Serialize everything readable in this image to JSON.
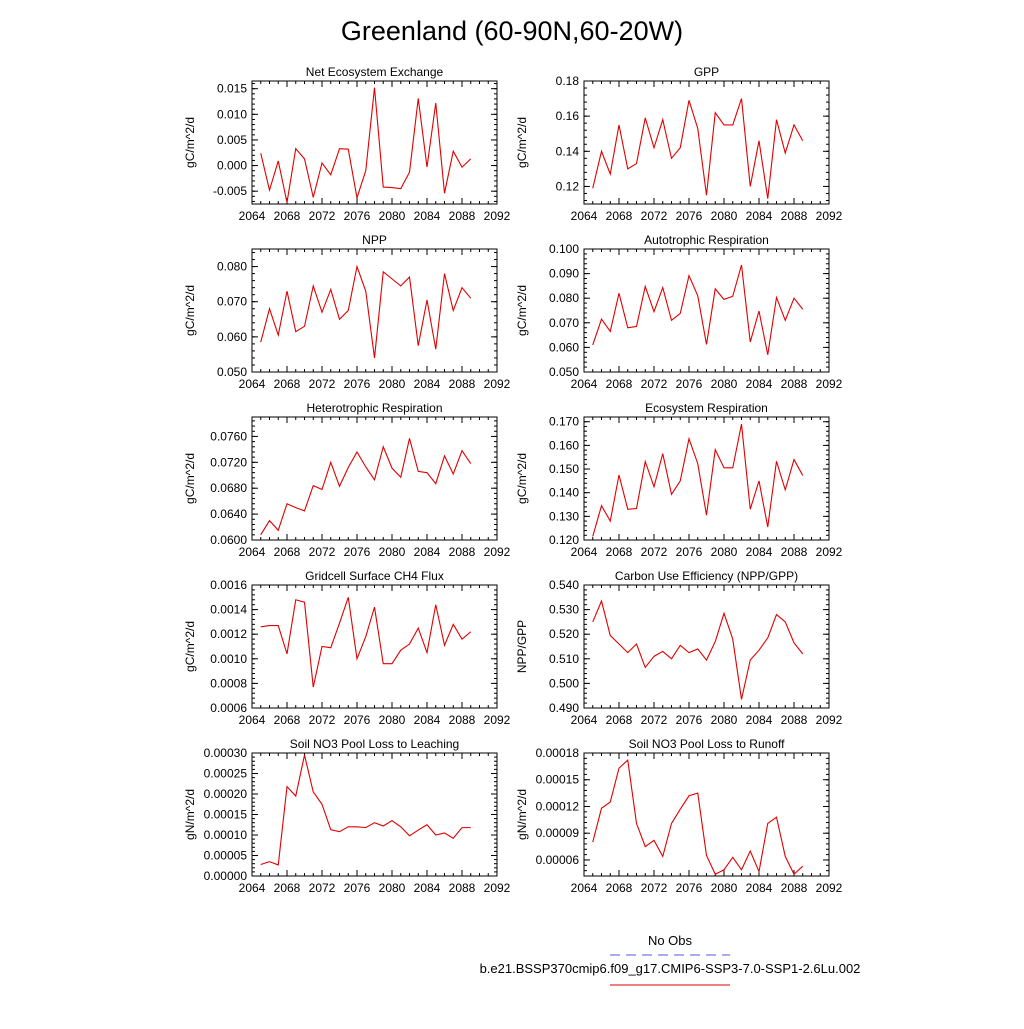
{
  "page": {
    "title": "Greenland (60-90N,60-20W)"
  },
  "legend": {
    "obs_label": "No Obs",
    "obs_color": "#5555dd",
    "case_label": "b.e21.BSSP370cmip6.f09_g17.CMIP6-SSP3-7.0-SSP1-2.6Lu.002",
    "case_color": "#e00000"
  },
  "chart_data": [
    {
      "type": "line",
      "title": "Net Ecosystem Exchange",
      "ylabel": "gC/m^2/d",
      "xlim": [
        2064,
        2092
      ],
      "ylim": [
        -0.0075,
        0.0165
      ],
      "yticks": [
        -0.005,
        0.0,
        0.005,
        0.01,
        0.015
      ],
      "ytick_labels": [
        "-0.005",
        "0.000",
        "0.005",
        "0.010",
        "0.015"
      ],
      "series": [
        {
          "x_start": 2065,
          "values": [
            0.0024,
            -0.0048,
            0.0009,
            -0.0072,
            0.0033,
            0.0013,
            -0.0062,
            0.0005,
            -0.0018,
            0.0033,
            0.0032,
            -0.0063,
            -0.001,
            0.0152,
            -0.0042,
            -0.0043,
            -0.0045,
            -0.0013,
            0.0131,
            -0.0003,
            0.0122,
            -0.0054,
            0.0028,
            -0.0003,
            0.0013
          ]
        }
      ]
    },
    {
      "type": "line",
      "title": "GPP",
      "ylabel": "gC/m^2/d",
      "xlim": [
        2064,
        2092
      ],
      "ylim": [
        0.11,
        0.18
      ],
      "yticks": [
        0.12,
        0.14,
        0.16,
        0.18
      ],
      "ytick_labels": [
        "0.12",
        "0.14",
        "0.16",
        "0.18"
      ],
      "series": [
        {
          "x_start": 2065,
          "values": [
            0.119,
            0.14,
            0.127,
            0.155,
            0.13,
            0.133,
            0.159,
            0.142,
            0.158,
            0.136,
            0.142,
            0.169,
            0.153,
            0.115,
            0.162,
            0.155,
            0.155,
            0.17,
            0.12,
            0.146,
            0.113,
            0.158,
            0.139,
            0.155,
            0.146
          ]
        }
      ]
    },
    {
      "type": "line",
      "title": "NPP",
      "ylabel": "gC/m^2/d",
      "xlim": [
        2064,
        2092
      ],
      "ylim": [
        0.05,
        0.085
      ],
      "yticks": [
        0.05,
        0.06,
        0.07,
        0.08
      ],
      "ytick_labels": [
        "0.050",
        "0.060",
        "0.070",
        "0.080"
      ],
      "series": [
        {
          "x_start": 2065,
          "values": [
            0.0585,
            0.068,
            0.0605,
            0.073,
            0.0615,
            0.063,
            0.0745,
            0.067,
            0.0735,
            0.065,
            0.0675,
            0.08,
            0.073,
            0.054,
            0.0785,
            0.0765,
            0.0745,
            0.077,
            0.0575,
            0.0705,
            0.0565,
            0.078,
            0.0675,
            0.074,
            0.071
          ]
        }
      ]
    },
    {
      "type": "line",
      "title": "Autotrophic Respiration",
      "ylabel": "gC/m^2/d",
      "xlim": [
        2064,
        2092
      ],
      "ylim": [
        0.05,
        0.1
      ],
      "yticks": [
        0.05,
        0.06,
        0.07,
        0.08,
        0.09,
        0.1
      ],
      "ytick_labels": [
        "0.050",
        "0.060",
        "0.070",
        "0.080",
        "0.090",
        "0.100"
      ],
      "series": [
        {
          "x_start": 2065,
          "values": [
            0.061,
            0.0715,
            0.0665,
            0.082,
            0.068,
            0.0685,
            0.0848,
            0.0745,
            0.0843,
            0.071,
            0.0738,
            0.0892,
            0.081,
            0.0612,
            0.0838,
            0.0795,
            0.0808,
            0.0935,
            0.0622,
            0.0748,
            0.057,
            0.0803,
            0.071,
            0.08,
            0.0755
          ]
        }
      ]
    },
    {
      "type": "line",
      "title": "Heterotrophic Respiration",
      "ylabel": "gC/m^2/d",
      "xlim": [
        2064,
        2092
      ],
      "ylim": [
        0.06,
        0.079
      ],
      "yticks": [
        0.06,
        0.064,
        0.068,
        0.072,
        0.076
      ],
      "ytick_labels": [
        "0.0600",
        "0.0640",
        "0.0680",
        "0.0720",
        "0.0760"
      ],
      "series": [
        {
          "x_start": 2065,
          "values": [
            0.0608,
            0.063,
            0.0615,
            0.0656,
            0.065,
            0.0645,
            0.0684,
            0.0678,
            0.072,
            0.0683,
            0.0712,
            0.0736,
            0.0713,
            0.0693,
            0.0744,
            0.0711,
            0.0697,
            0.0757,
            0.0706,
            0.0704,
            0.0687,
            0.073,
            0.0702,
            0.0738,
            0.0718
          ]
        }
      ]
    },
    {
      "type": "line",
      "title": "Ecosystem Respiration",
      "ylabel": "gC/m^2/d",
      "xlim": [
        2064,
        2092
      ],
      "ylim": [
        0.12,
        0.172
      ],
      "yticks": [
        0.12,
        0.13,
        0.14,
        0.15,
        0.16,
        0.17
      ],
      "ytick_labels": [
        "0.120",
        "0.130",
        "0.140",
        "0.150",
        "0.160",
        "0.170"
      ],
      "series": [
        {
          "x_start": 2065,
          "values": [
            0.1215,
            0.1345,
            0.128,
            0.1475,
            0.133,
            0.1333,
            0.1532,
            0.1425,
            0.1565,
            0.1393,
            0.145,
            0.1628,
            0.1523,
            0.1305,
            0.1582,
            0.1505,
            0.1505,
            0.169,
            0.133,
            0.145,
            0.1255,
            0.1533,
            0.1412,
            0.154,
            0.1473
          ]
        }
      ]
    },
    {
      "type": "line",
      "title": "Gridcell Surface CH4 Flux",
      "ylabel": "gC/m^2/d",
      "xlim": [
        2064,
        2092
      ],
      "ylim": [
        0.0006,
        0.0016
      ],
      "yticks": [
        0.0006,
        0.0008,
        0.001,
        0.0012,
        0.0014,
        0.0016
      ],
      "ytick_labels": [
        "0.0006",
        "0.0008",
        "0.0010",
        "0.0012",
        "0.0014",
        "0.0016"
      ],
      "series": [
        {
          "x_start": 2065,
          "values": [
            0.00126,
            0.00127,
            0.00127,
            0.00104,
            0.00148,
            0.00146,
            0.00077,
            0.0011,
            0.00109,
            0.00129,
            0.0015,
            0.001,
            0.00118,
            0.00142,
            0.00096,
            0.00096,
            0.00107,
            0.00112,
            0.00125,
            0.00105,
            0.00144,
            0.00111,
            0.00128,
            0.00116,
            0.00122
          ]
        }
      ]
    },
    {
      "type": "line",
      "title": "Carbon Use Efficiency (NPP/GPP)",
      "ylabel": "NPP/GPP",
      "xlim": [
        2064,
        2092
      ],
      "ylim": [
        0.49,
        0.54
      ],
      "yticks": [
        0.49,
        0.5,
        0.51,
        0.52,
        0.53,
        0.54
      ],
      "ytick_labels": [
        "0.490",
        "0.500",
        "0.510",
        "0.520",
        "0.530",
        "0.540"
      ],
      "series": [
        {
          "x_start": 2065,
          "values": [
            0.525,
            0.5335,
            0.5195,
            0.516,
            0.5125,
            0.516,
            0.5065,
            0.511,
            0.513,
            0.51,
            0.5155,
            0.5125,
            0.514,
            0.5095,
            0.517,
            0.5285,
            0.518,
            0.4935,
            0.5095,
            0.5135,
            0.5185,
            0.528,
            0.525,
            0.5165,
            0.512
          ]
        }
      ]
    },
    {
      "type": "line",
      "title": "Soil NO3 Pool Loss to Leaching",
      "ylabel": "gN/m^2/d",
      "xlim": [
        2064,
        2092
      ],
      "ylim": [
        0.0,
        0.0003
      ],
      "yticks": [
        0.0,
        5e-05,
        0.0001,
        0.00015,
        0.0002,
        0.00025,
        0.0003
      ],
      "ytick_labels": [
        "0.00000",
        "0.00005",
        "0.00010",
        "0.00015",
        "0.00020",
        "0.00025",
        "0.00030"
      ],
      "series": [
        {
          "x_start": 2065,
          "values": [
            2.8e-05,
            3.5e-05,
            2.7e-05,
            0.000218,
            0.000195,
            0.000295,
            0.000205,
            0.000175,
            0.000113,
            0.000108,
            0.00012,
            0.00012,
            0.000118,
            0.00013,
            0.000122,
            0.000135,
            0.00012,
            9.8e-05,
            0.000112,
            0.000125,
            0.0001,
            0.000105,
            9.2e-05,
            0.000118,
            0.000118
          ]
        }
      ]
    },
    {
      "type": "line",
      "title": "Soil NO3 Pool Loss to Runoff",
      "ylabel": "gN/m^2/d",
      "xlim": [
        2064,
        2092
      ],
      "ylim": [
        4.2e-05,
        0.00018
      ],
      "yticks": [
        6e-05,
        9e-05,
        0.00012,
        0.00015,
        0.00018
      ],
      "ytick_labels": [
        "0.00006",
        "0.00009",
        "0.00012",
        "0.00015",
        "0.00018"
      ],
      "series": [
        {
          "x_start": 2065,
          "values": [
            8e-05,
            0.000118,
            0.000125,
            0.000163,
            0.000172,
            0.000101,
            7.5e-05,
            8.2e-05,
            6.4e-05,
            0.000101,
            0.000117,
            0.000132,
            0.000135,
            6.5e-05,
            4.4e-05,
            4.9e-05,
            6.3e-05,
            4.9e-05,
            7e-05,
            4.7e-05,
            0.000101,
            0.000108,
            6.4e-05,
            4.4e-05,
            5.3e-05
          ]
        }
      ]
    }
  ],
  "xaxis": {
    "ticks": [
      2064,
      2068,
      2072,
      2076,
      2080,
      2084,
      2088,
      2092
    ],
    "tick_labels": [
      "2064",
      "2068",
      "2072",
      "2076",
      "2080",
      "2084",
      "2088",
      "2092"
    ]
  }
}
